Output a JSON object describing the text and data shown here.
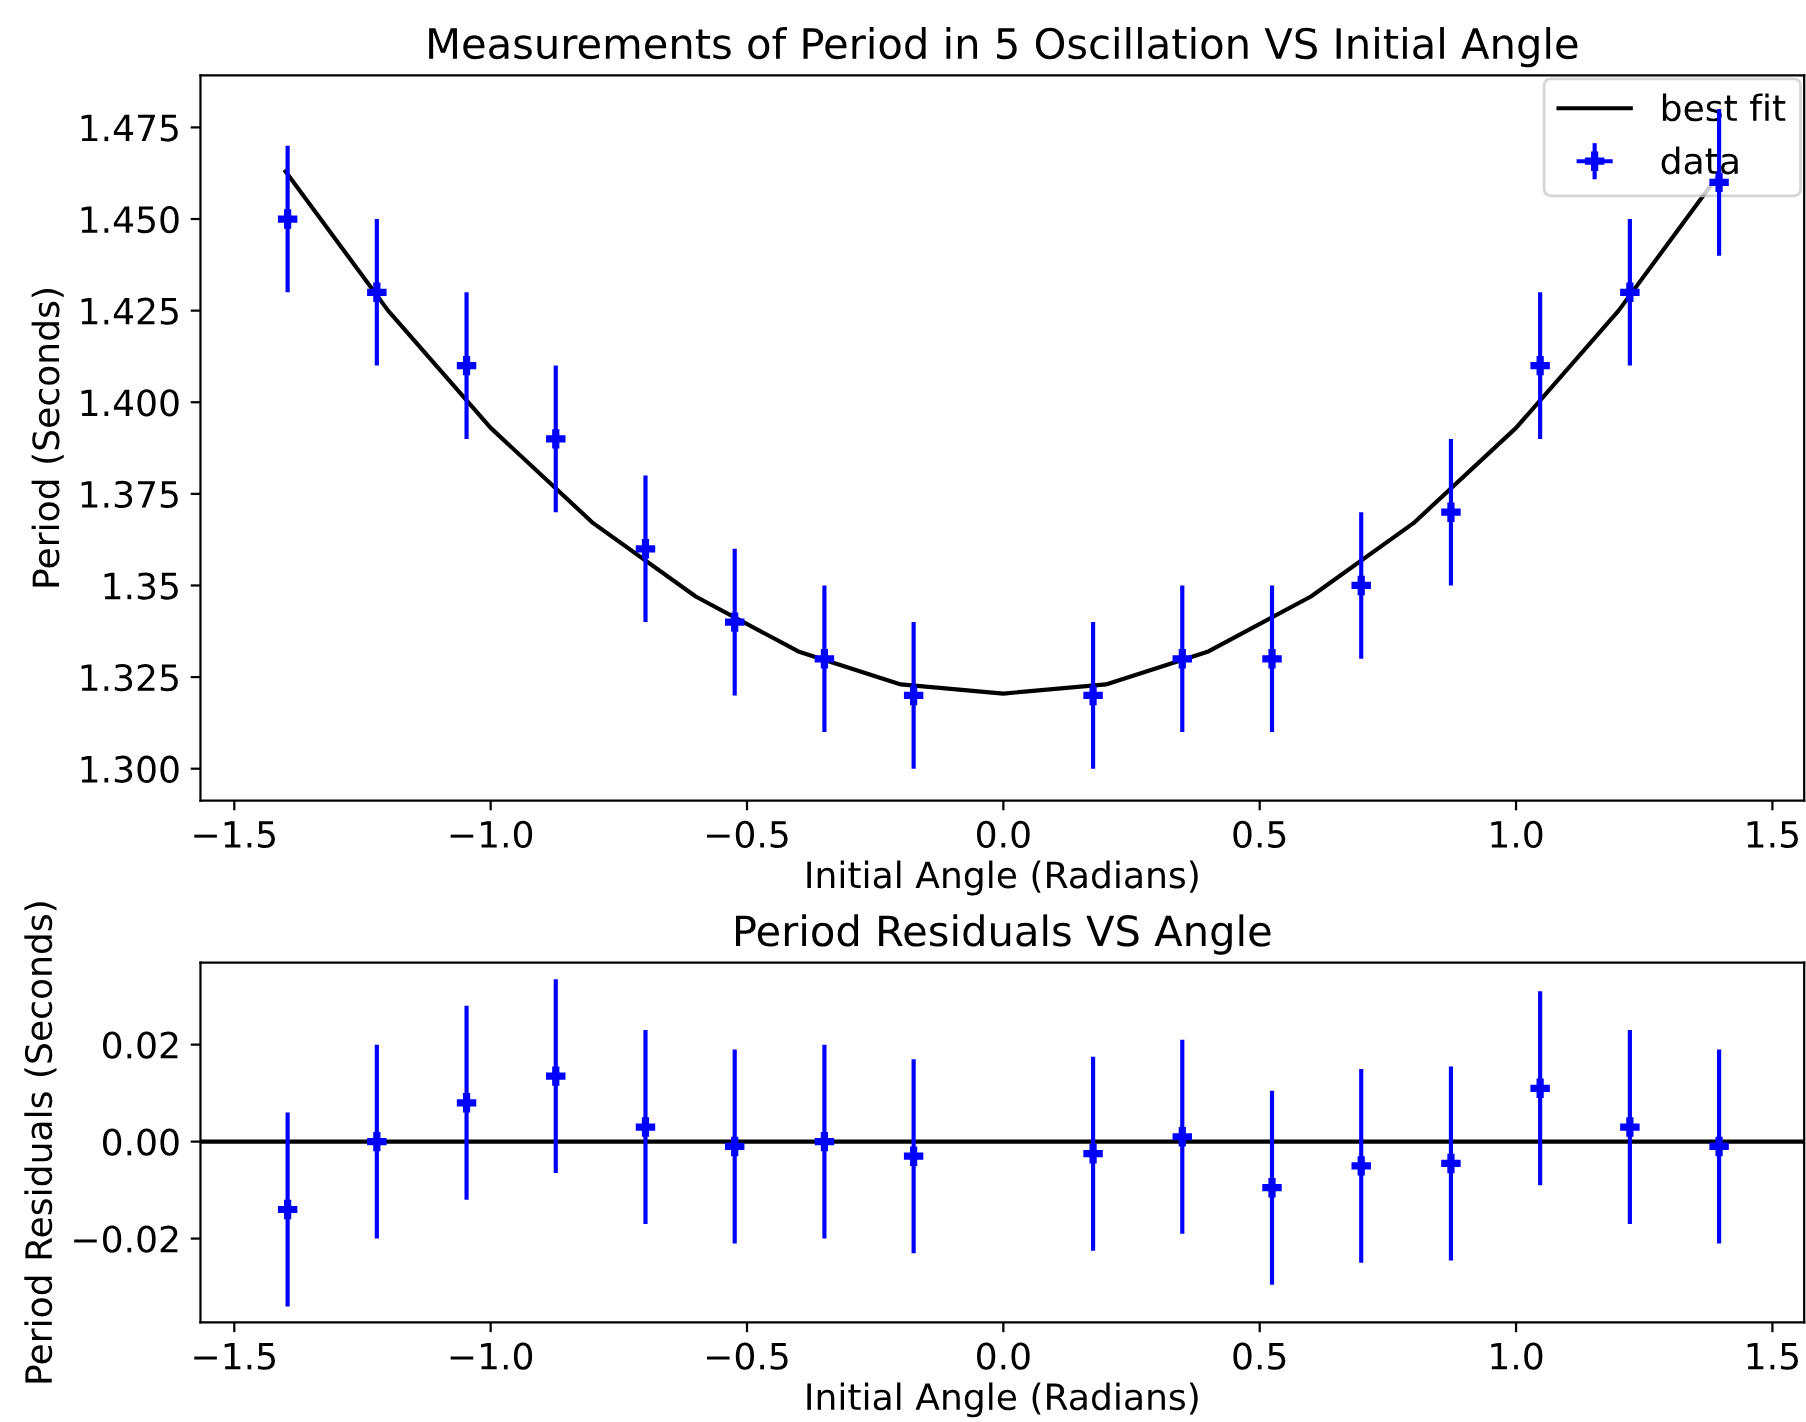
{
  "chart_data": [
    {
      "type": "scatter",
      "title": "Measurements of Period in 5 Oscillation VS Initial Angle",
      "xlabel": "Initial Angle (Radians)",
      "ylabel": "Period (Seconds)",
      "xlim": [
        -1.566,
        1.562
      ],
      "xticks": [
        {
          "value": -1.5,
          "label": "−1.5"
        },
        {
          "value": -1.0,
          "label": "−1.0"
        },
        {
          "value": -0.5,
          "label": "−0.5"
        },
        {
          "value": 0,
          "label": "0.0"
        },
        {
          "value": 0.5,
          "label": "0.5"
        },
        {
          "value": 1,
          "label": "1.0"
        },
        {
          "value": 1.5,
          "label": "1.5"
        }
      ],
      "ylim": [
        1.2913,
        1.4892
      ],
      "yticks": [
        {
          "value": 1.3,
          "label": "1.300"
        },
        1.325,
        1.35,
        1.375,
        {
          "value": 1.4,
          "label": "1.400"
        },
        1.425,
        {
          "value": 1.45,
          "label": "1.450"
        },
        1.475
      ],
      "legend": "top right",
      "grid": false,
      "series": [
        {
          "name": "best fit",
          "type": "line",
          "color": "#000000",
          "x": [
            -1.4,
            -1.2,
            -1.0,
            -0.8,
            -0.6,
            -0.4,
            -0.2,
            0.0,
            0.2,
            0.4,
            0.6,
            0.8,
            1.0,
            1.2,
            1.4
          ],
          "values": [
            1.463,
            1.425,
            1.393,
            1.367,
            1.347,
            1.332,
            1.323,
            1.3205,
            1.323,
            1.332,
            1.347,
            1.367,
            1.393,
            1.425,
            1.463
          ]
        },
        {
          "name": "data",
          "color": "#0000ff",
          "marker": "cross",
          "x": [
            -1.396,
            -1.222,
            -1.047,
            -0.873,
            -0.698,
            -0.524,
            -0.349,
            -0.175,
            0.175,
            0.349,
            0.524,
            0.698,
            0.873,
            1.047,
            1.222,
            1.396
          ],
          "values": [
            1.45,
            1.43,
            1.41,
            1.39,
            1.36,
            1.34,
            1.33,
            1.32,
            1.32,
            1.33,
            1.33,
            1.35,
            1.37,
            1.41,
            1.43,
            1.46
          ],
          "errors": [
            0.02,
            0.02,
            0.02,
            0.02,
            0.02,
            0.02,
            0.02,
            0.02,
            0.02,
            0.02,
            0.02,
            0.02,
            0.02,
            0.02,
            0.02,
            0.02
          ],
          "xerrors": [
            0.017,
            0.017,
            0.017,
            0.017,
            0.017,
            0.017,
            0.017,
            0.017,
            0.017,
            0.017,
            0.017,
            0.017,
            0.017,
            0.017,
            0.017,
            0.017
          ]
        }
      ]
    },
    {
      "type": "scatter",
      "title": "Period Residuals VS Angle",
      "xlabel": "Initial Angle (Radians)",
      "ylabel": "Period Residuals (Seconds)",
      "xlim": [
        -1.566,
        1.562
      ],
      "xticks": [
        {
          "value": -1.5,
          "label": "−1.5"
        },
        {
          "value": -1.0,
          "label": "−1.0"
        },
        {
          "value": -0.5,
          "label": "−0.5"
        },
        {
          "value": 0,
          "label": "0.0"
        },
        {
          "value": 0.5,
          "label": "0.5"
        },
        {
          "value": 1,
          "label": "1.0"
        },
        {
          "value": 1.5,
          "label": "1.5"
        }
      ],
      "ylim": [
        -0.0373,
        0.0369
      ],
      "yticks": [
        {
          "value": -0.02,
          "label": "−0.02"
        },
        {
          "value": 0.0,
          "label": "0.00"
        },
        {
          "value": 0.02,
          "label": "0.02"
        }
      ],
      "grid": false,
      "ref_lines": [
        {
          "axis": "y",
          "value": 0,
          "color": "#000000"
        }
      ],
      "series": [
        {
          "color": "#0000ff",
          "marker": "cross",
          "x": [
            -1.396,
            -1.222,
            -1.047,
            -0.873,
            -0.698,
            -0.524,
            -0.349,
            -0.175,
            0.175,
            0.349,
            0.524,
            0.698,
            0.873,
            1.047,
            1.222,
            1.396
          ],
          "values": [
            -0.014,
            0.0,
            0.008,
            0.0135,
            0.003,
            -0.001,
            0.0,
            -0.003,
            -0.0025,
            0.001,
            -0.0095,
            -0.005,
            -0.0045,
            0.011,
            0.003,
            -0.001
          ],
          "errors": [
            0.02,
            0.02,
            0.02,
            0.02,
            0.02,
            0.02,
            0.02,
            0.02,
            0.02,
            0.02,
            0.02,
            0.02,
            0.02,
            0.02,
            0.02,
            0.02
          ],
          "xerrors": [
            0.017,
            0.017,
            0.017,
            0.017,
            0.017,
            0.017,
            0.017,
            0.017,
            0.017,
            0.017,
            0.017,
            0.017,
            0.017,
            0.017,
            0.017,
            0.017
          ]
        }
      ]
    }
  ]
}
